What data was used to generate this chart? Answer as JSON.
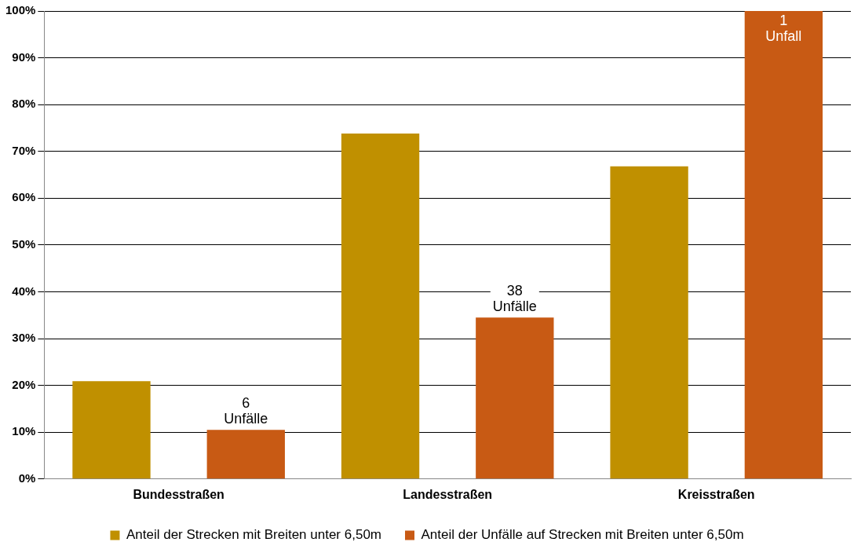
{
  "chart_data": {
    "type": "bar",
    "categories": [
      "Bundesstraßen",
      "Landesstraßen",
      "Kreisstraßen"
    ],
    "series": [
      {
        "name": "Anteil der Strecken mit Breiten unter 6,50m",
        "color": "#c09000",
        "values": [
          20.9,
          73.8,
          66.8
        ]
      },
      {
        "name": "Anteil der Unfälle auf Strecken mit Breiten unter 6,50m",
        "color": "#c85a14",
        "values": [
          10.5,
          34.5,
          100
        ]
      }
    ],
    "ylim": [
      0,
      100
    ],
    "yticks": [
      {
        "value": 0,
        "label": "0%"
      },
      {
        "value": 10,
        "label": "10%"
      },
      {
        "value": 20,
        "label": "20%"
      },
      {
        "value": 30,
        "label": "30%"
      },
      {
        "value": 40,
        "label": "40%"
      },
      {
        "value": 50,
        "label": "50%"
      },
      {
        "value": 60,
        "label": "60%"
      },
      {
        "value": 70,
        "label": "70%"
      },
      {
        "value": 80,
        "label": "80%"
      },
      {
        "value": 90,
        "label": "90%"
      },
      {
        "value": 100,
        "label": "100%"
      }
    ],
    "grid": "y",
    "legend": "bottom",
    "annotations": [
      "6 Unfälle",
      "38 Unfälle",
      "1 Unfall"
    ]
  }
}
